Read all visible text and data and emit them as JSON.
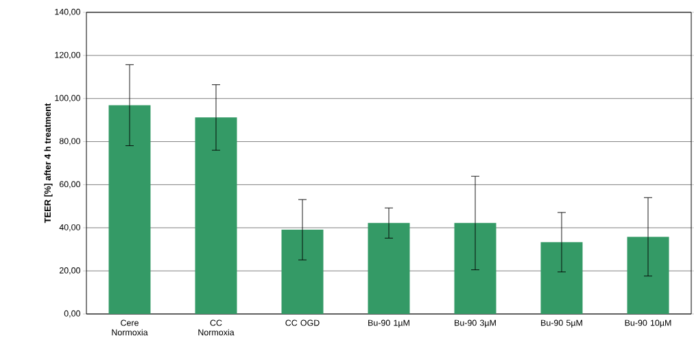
{
  "chart_data": {
    "type": "bar",
    "ylabel": "TEER [%] after 4 h treatment",
    "categories": [
      "Cere Normoxia",
      "CC Normoxia",
      "CC OGD",
      "Bu-90 1µM",
      "Bu-90 3µM",
      "Bu-90 5µM",
      "Bu-90 10µM"
    ],
    "values": [
      96.9,
      91.2,
      39.1,
      42.2,
      42.2,
      33.3,
      35.8
    ],
    "errors": [
      18.8,
      15.2,
      14.0,
      7.0,
      21.7,
      13.8,
      18.2
    ],
    "color": "#349a66",
    "ylim": [
      0,
      140
    ],
    "yticks": [
      {
        "value": 0,
        "label": "0,00"
      },
      {
        "value": 20,
        "label": "20,00"
      },
      {
        "value": 40,
        "label": "40,00"
      },
      {
        "value": 60,
        "label": "60,00"
      },
      {
        "value": 80,
        "label": "80,00"
      },
      {
        "value": 100,
        "label": "100,00"
      },
      {
        "value": 120,
        "label": "120,00"
      },
      {
        "value": 140,
        "label": "140,00"
      }
    ],
    "grid": "y"
  }
}
